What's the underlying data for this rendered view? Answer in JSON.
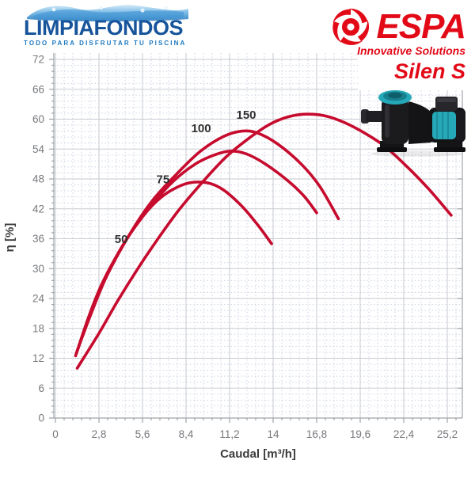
{
  "header": {
    "limpiafondos": {
      "title": "LIMPIAFONDOS",
      "subtitle": "TODO PARA DISFRUTAR TU PISCINA"
    },
    "espa": {
      "brand": "ESPA",
      "tagline": "Innovative Solutions",
      "model": "Silen S"
    }
  },
  "colors": {
    "curve_red": "#c60b2e",
    "espa_red": "#e30a18",
    "limpia_blue": "#17549b",
    "limpia_light_blue": "#1e78bf",
    "pump_teal": "#25a8b8",
    "grid_major": "#c7cad0",
    "grid_minor": "#ccd2e2",
    "axis": "#9fa3a8",
    "tick_text": "#76787c",
    "label_text": "#303030"
  },
  "chart_data": {
    "type": "line",
    "title": "",
    "xlabel": "Caudal [m³/h]",
    "ylabel": "η [%]",
    "xlim": [
      0,
      26.2
    ],
    "ylim": [
      0,
      73
    ],
    "grid": "on",
    "legend_position": "inline-curve-labels",
    "x_ticks": [
      {
        "v": 0,
        "label": "0"
      },
      {
        "v": 2.8,
        "label": "2,8"
      },
      {
        "v": 5.6,
        "label": "5,6"
      },
      {
        "v": 8.4,
        "label": "8,4"
      },
      {
        "v": 11.2,
        "label": "11,2"
      },
      {
        "v": 14,
        "label": "14"
      },
      {
        "v": 16.8,
        "label": "16,8"
      },
      {
        "v": 19.6,
        "label": "19,6"
      },
      {
        "v": 22.4,
        "label": "22,4"
      },
      {
        "v": 25.2,
        "label": "25,2"
      }
    ],
    "y_ticks": [
      0,
      6,
      12,
      18,
      24,
      30,
      36,
      42,
      48,
      54,
      60,
      66,
      72
    ],
    "x_minor_step": 0.56,
    "y_minor_step": 1.2,
    "curve_color": "#c60b2e",
    "series": [
      {
        "name": "Silen S 50",
        "label": "50",
        "label_at": [
          4.23,
          35.9
        ],
        "points": [
          [
            1.3,
            12.5
          ],
          [
            2.1,
            20
          ],
          [
            3,
            27
          ],
          [
            4.3,
            34.5
          ],
          [
            5.5,
            40
          ],
          [
            6.5,
            43.5
          ],
          [
            7.5,
            45.8
          ],
          [
            8.6,
            47.2
          ],
          [
            9.8,
            47.2
          ],
          [
            10.8,
            45.8
          ],
          [
            12,
            42.5
          ],
          [
            13,
            38.8
          ],
          [
            13.9,
            35
          ]
        ]
      },
      {
        "name": "Silen S 75",
        "label": "75",
        "label_at": [
          6.92,
          47.9
        ],
        "points": [
          [
            1.35,
            13
          ],
          [
            2.2,
            20.5
          ],
          [
            3.2,
            28
          ],
          [
            4.5,
            35.5
          ],
          [
            6,
            42
          ],
          [
            7.5,
            47.3
          ],
          [
            9,
            51
          ],
          [
            10.3,
            52.9
          ],
          [
            11.3,
            53.6
          ],
          [
            12.3,
            53
          ],
          [
            13.5,
            51
          ],
          [
            15,
            47.5
          ],
          [
            16,
            44.5
          ],
          [
            16.8,
            41.2
          ]
        ]
      },
      {
        "name": "Silen S 100",
        "label": "100",
        "label_at": [
          9.37,
          58.2
        ],
        "points": [
          [
            1.4,
            13.5
          ],
          [
            2.3,
            21
          ],
          [
            3.3,
            28.5
          ],
          [
            4.7,
            36.5
          ],
          [
            6.2,
            43.5
          ],
          [
            7.8,
            49
          ],
          [
            9.3,
            53.5
          ],
          [
            10.8,
            56.5
          ],
          [
            12,
            57.6
          ],
          [
            13,
            57.2
          ],
          [
            14.3,
            55
          ],
          [
            15.8,
            51
          ],
          [
            17,
            46.5
          ],
          [
            18.2,
            40
          ]
        ]
      },
      {
        "name": "Silen S 150",
        "label": "150",
        "label_at": [
          12.27,
          60.9
        ],
        "points": [
          [
            1.4,
            10
          ],
          [
            2.8,
            17
          ],
          [
            4,
            23.5
          ],
          [
            5.3,
            30
          ],
          [
            6.6,
            36
          ],
          [
            8,
            42
          ],
          [
            9.5,
            47.5
          ],
          [
            11,
            52.5
          ],
          [
            12.5,
            56.3
          ],
          [
            13.8,
            59
          ],
          [
            15,
            60.5
          ],
          [
            16.1,
            61
          ],
          [
            17.3,
            60.7
          ],
          [
            18.6,
            59.3
          ],
          [
            20,
            57
          ],
          [
            21.2,
            54.5
          ],
          [
            22.6,
            50.5
          ],
          [
            24,
            46
          ],
          [
            25.45,
            40.7
          ]
        ]
      }
    ]
  }
}
